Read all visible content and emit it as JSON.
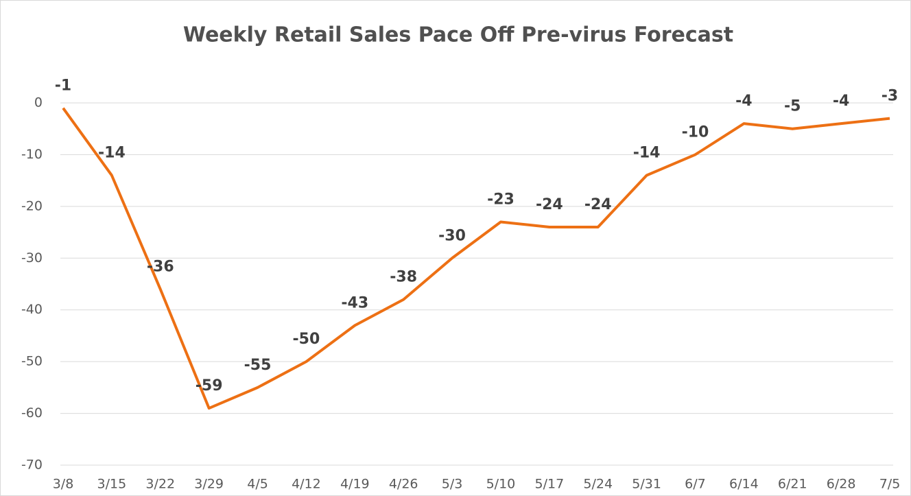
{
  "chart_data": {
    "type": "line",
    "title": "Weekly Retail Sales Pace Off Pre-virus Forecast",
    "categories": [
      "3/8",
      "3/15",
      "3/22",
      "3/29",
      "4/5",
      "4/12",
      "4/19",
      "4/26",
      "5/3",
      "5/10",
      "5/17",
      "5/24",
      "5/31",
      "6/7",
      "6/14",
      "6/21",
      "6/28",
      "7/5"
    ],
    "series": [
      {
        "name": "Weekly Retail Sales Pace",
        "color": "#ed7014",
        "values": [
          -1,
          -14,
          -36,
          -59,
          -55,
          -50,
          -43,
          -38,
          -30,
          -23,
          -24,
          -24,
          -14,
          -10,
          -4,
          -5,
          -4,
          -3
        ]
      }
    ],
    "ylim": [
      -70,
      0
    ],
    "yticks": [
      0,
      -10,
      -20,
      -30,
      -40,
      -50,
      -60,
      -70
    ],
    "grid": true,
    "data_labels": true
  }
}
